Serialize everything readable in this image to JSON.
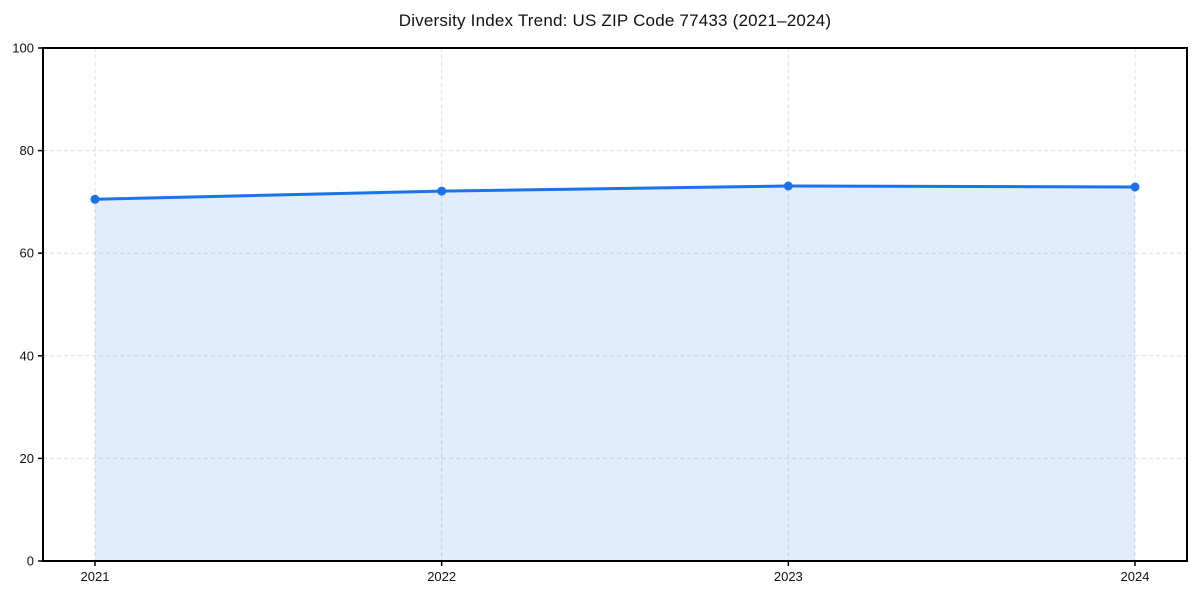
{
  "chart_data": {
    "type": "area",
    "title": "Diversity Index Trend: US ZIP Code 77433 (2021–2024)",
    "x": [
      2021,
      2022,
      2023,
      2024
    ],
    "x_tick_labels": [
      "2021",
      "2022",
      "2023",
      "2024"
    ],
    "values": [
      70.5,
      72.1,
      73.1,
      72.9
    ],
    "xlabel": "",
    "ylabel": "",
    "ylim": [
      0,
      100
    ],
    "y_ticks": [
      0,
      20,
      40,
      60,
      80,
      100
    ],
    "grid": true,
    "legend": "none",
    "colors": {
      "line": "#1a73e8",
      "marker": "#1a73e8",
      "fill": "rgba(26,115,232,0.13)",
      "grid": "#dedede",
      "spine": "#000000",
      "tick": "#000000",
      "tick_label": "#111111",
      "title": "#111111",
      "background": "#ffffff"
    }
  }
}
